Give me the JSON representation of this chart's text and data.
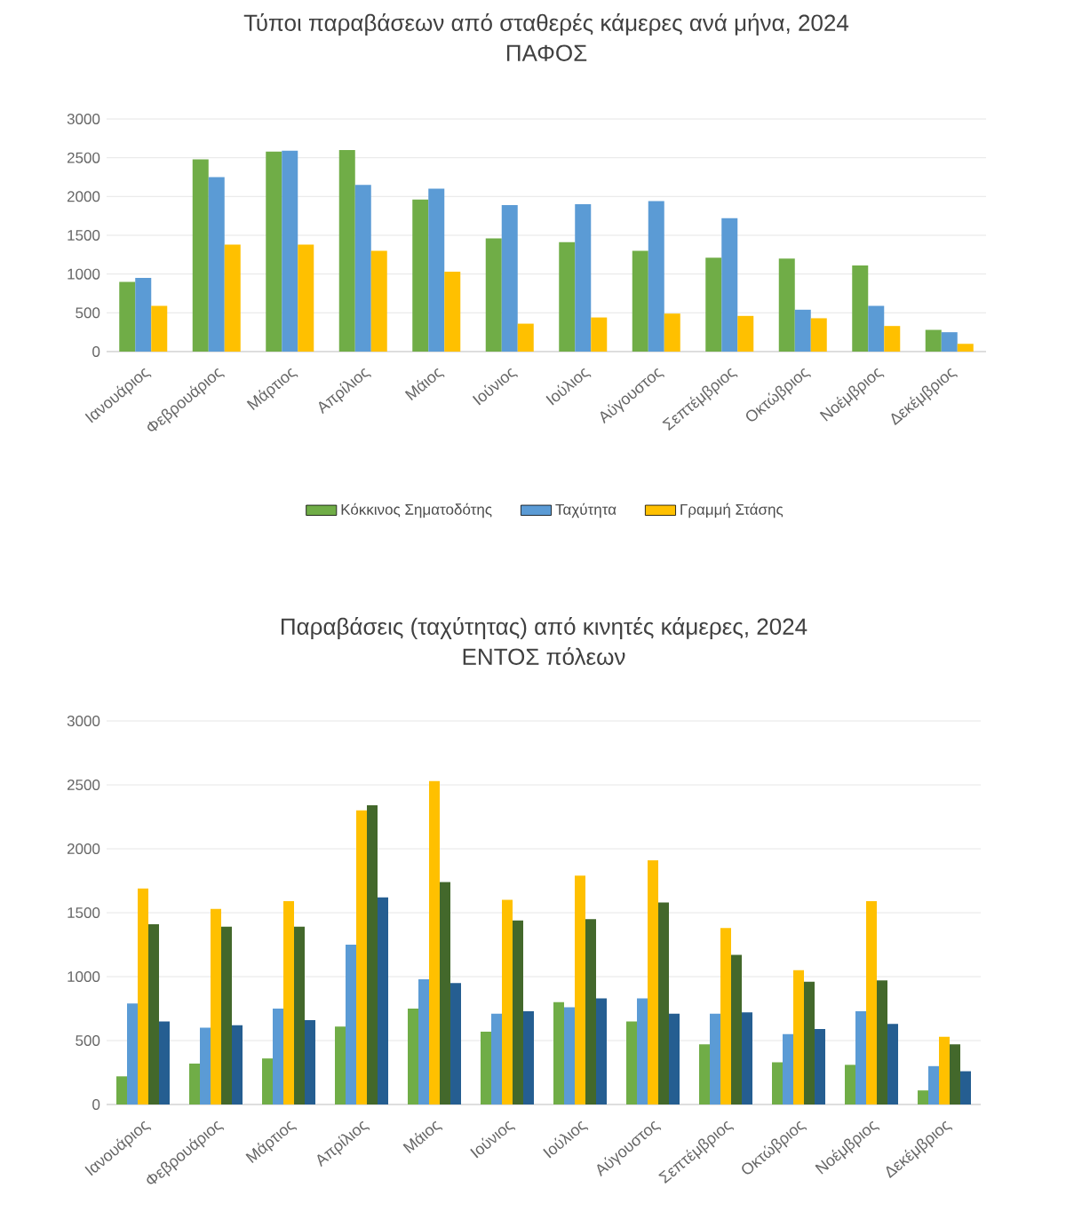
{
  "chart_data": [
    {
      "type": "bar",
      "title": "Τύποι παραβάσεων από σταθερές κάμερες ανά μήνα, 2024",
      "subtitle": "ΠΑΦΟΣ",
      "categories": [
        "Ιανουάριος",
        "Φεβρουάριος",
        "Μάρτιος",
        "Απρίλιος",
        "Μάιος",
        "Ιούνιος",
        "Ιούλιος",
        "Αύγουστος",
        "Σεπτέμβριος",
        "Οκτώβριος",
        "Νοέμβριος",
        "Δεκέμβριος"
      ],
      "series": [
        {
          "name": "Κόκκινος Σηματοδότης",
          "color": "#70ad47",
          "values": [
            900,
            2480,
            2580,
            2600,
            1960,
            1460,
            1410,
            1300,
            1210,
            1200,
            1110,
            280
          ]
        },
        {
          "name": "Ταχύτητα",
          "color": "#5b9bd5",
          "values": [
            950,
            2250,
            2590,
            2150,
            2100,
            1890,
            1900,
            1940,
            1720,
            540,
            590,
            250
          ]
        },
        {
          "name": "Γραμμή Στάσης",
          "color": "#ffc000",
          "values": [
            590,
            1380,
            1380,
            1300,
            1030,
            360,
            440,
            490,
            460,
            430,
            330,
            100
          ]
        }
      ],
      "ylim": [
        0,
        3000
      ],
      "yticks": [
        0,
        500,
        1000,
        1500,
        2000,
        2500,
        3000
      ],
      "grid": "y",
      "legend": "bottom"
    },
    {
      "type": "bar",
      "title": "Παραβάσεις (ταχύτητας) από κινητές κάμερες, 2024",
      "subtitle": "ΕΝΤΟΣ πόλεων",
      "categories": [
        "Ιανουάριος",
        "Φεβρουάριος",
        "Μάρτιος",
        "Απρίλιος",
        "Μάιος",
        "Ιούνιος",
        "Ιούλιος",
        "Αύγουστος",
        "Σεπτέμβριος",
        "Οκτώβριος",
        "Νοέμβριος",
        "Δεκέμβριος"
      ],
      "series": [
        {
          "color": "#70ad47",
          "values": [
            220,
            320,
            360,
            610,
            750,
            570,
            800,
            650,
            470,
            330,
            310,
            110
          ]
        },
        {
          "color": "#5b9bd5",
          "values": [
            790,
            600,
            750,
            1250,
            980,
            710,
            760,
            830,
            710,
            550,
            730,
            300
          ]
        },
        {
          "color": "#ffc000",
          "values": [
            1690,
            1530,
            1590,
            2300,
            2530,
            1600,
            1790,
            1910,
            1380,
            1050,
            1590,
            530
          ]
        },
        {
          "color": "#43682b",
          "values": [
            1410,
            1390,
            1390,
            2340,
            1740,
            1440,
            1450,
            1580,
            1170,
            960,
            970,
            470
          ]
        },
        {
          "color": "#255e91",
          "values": [
            650,
            620,
            660,
            1620,
            950,
            730,
            830,
            710,
            720,
            590,
            630,
            260
          ]
        }
      ],
      "ylim": [
        0,
        3000
      ],
      "yticks": [
        0,
        500,
        1000,
        1500,
        2000,
        2500,
        3000
      ],
      "grid": "y"
    }
  ]
}
